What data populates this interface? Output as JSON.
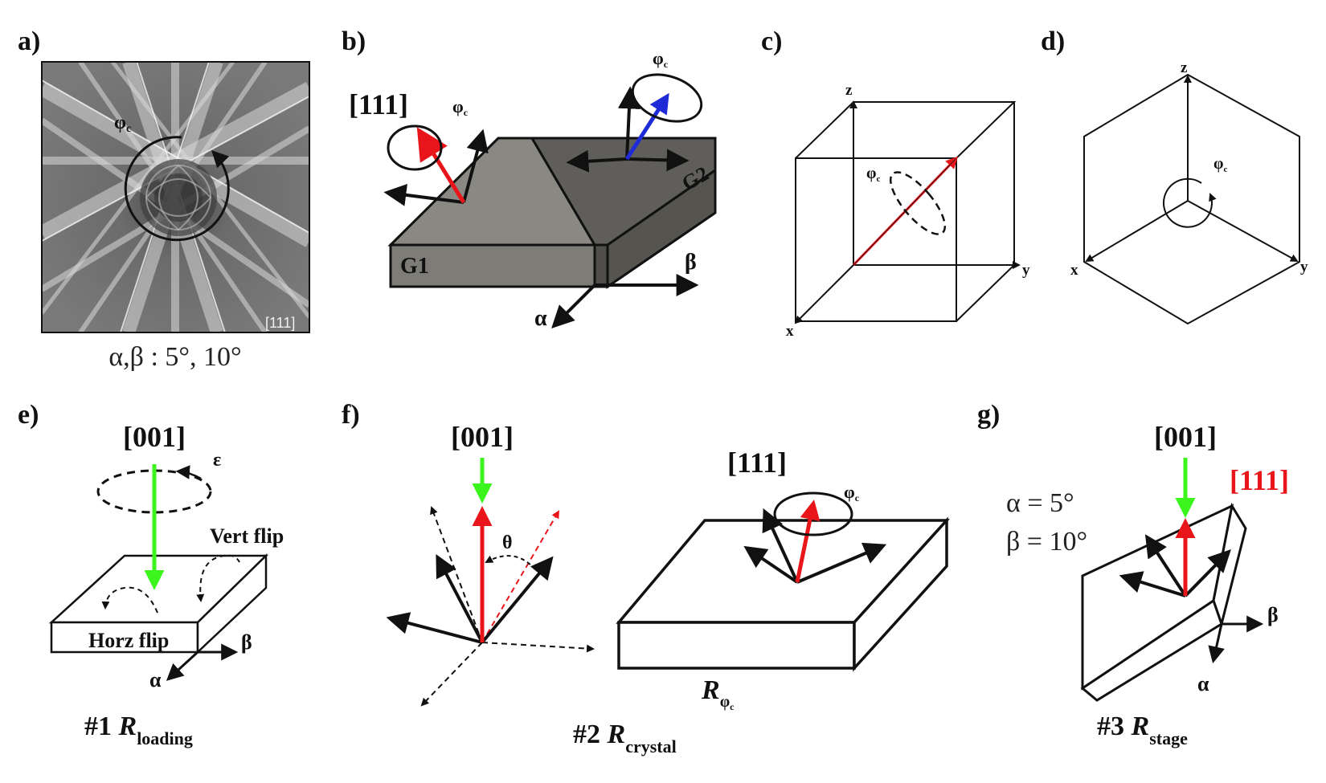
{
  "panels": {
    "a": {
      "label": "a)",
      "zone_axis": "[111]",
      "phi": "φ",
      "phi_sub": "c",
      "caption": "α,β : 5°, 10°"
    },
    "b": {
      "label": "b)",
      "direction": "[111]",
      "phi_left": "φ",
      "phi_right": "φ",
      "phi_sub": "c",
      "grain1": "G1",
      "grain2": "G2",
      "alpha": "α",
      "beta": "β"
    },
    "c": {
      "label": "c)",
      "axis_x": "x",
      "axis_y": "y",
      "axis_z": "z",
      "phi": "φ",
      "phi_sub": "c"
    },
    "d": {
      "label": "d)",
      "axis_x": "x",
      "axis_y": "y",
      "axis_z": "z",
      "phi": "φ",
      "phi_sub": "c"
    },
    "e": {
      "label": "e)",
      "direction": "[001]",
      "epsilon": "ε",
      "vert_flip": "Vert flip",
      "horz_flip": "Horz flip",
      "alpha": "α",
      "beta": "β",
      "title_prefix": "#1 ",
      "title_R": "R",
      "title_sub": "loading"
    },
    "f": {
      "label": "f)",
      "direction_left": "[001]",
      "direction_right": "[111]",
      "theta": "θ",
      "phi": "φ",
      "phi_sub": "c",
      "r_label": "R",
      "r_sub": "φ",
      "r_sub2": "c",
      "title_prefix": "#2 ",
      "title_R": "R",
      "title_sub": "crystal"
    },
    "g": {
      "label": "g)",
      "direction_black": "[001]",
      "direction_red": "[111]",
      "alpha_eq": "α = 5°",
      "beta_eq": "β = 10°",
      "alpha": "α",
      "beta": "β",
      "title_prefix": "#3 ",
      "title_R": "R",
      "title_sub": "stage"
    }
  },
  "colors": {
    "ink": "#111111",
    "red": "#e8161b",
    "blue": "#1f2bd6",
    "green": "#3cf51c",
    "grain1": "#7b7974",
    "grain2": "#5a5956",
    "pattern_bg": "#6f6f6f"
  }
}
